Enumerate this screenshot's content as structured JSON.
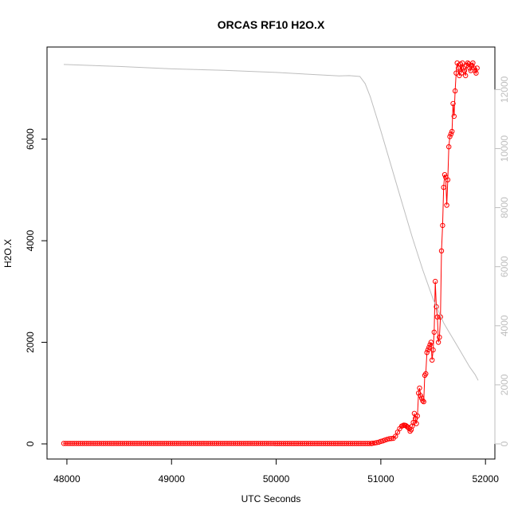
{
  "chart_data": {
    "type": "line",
    "title": "ORCAS RF10 H2O.X",
    "xlabel": "UTC Seconds",
    "ylabel": "H2O.X",
    "y2label": "",
    "xlim": [
      47970,
      51930
    ],
    "ylim": [
      0,
      7500
    ],
    "y2lim": [
      0,
      12900
    ],
    "x_ticks": [
      "48000",
      "49000",
      "50000",
      "51000",
      "52000"
    ],
    "y_ticks": [
      "0",
      "2000",
      "4000",
      "6000"
    ],
    "y2_ticks": [
      "0",
      "2000",
      "4000",
      "6000",
      "8000",
      "10000",
      "12000"
    ],
    "legend": "none",
    "grid": false,
    "series": [
      {
        "axis": "left",
        "style": "line-with-circle-markers",
        "color": "#ff0000",
        "flat_segment": {
          "x_start": 47970,
          "x_end": 50900,
          "step": 20,
          "y_start": 10,
          "y_end": 8
        },
        "x": [
          50920,
          50940,
          50960,
          50980,
          51000,
          51020,
          51040,
          51060,
          51080,
          51100,
          51120,
          51140,
          51160,
          51180,
          51200,
          51210,
          51220,
          51230,
          51240,
          51250,
          51260,
          51270,
          51280,
          51290,
          51300,
          51310,
          51320,
          51330,
          51340,
          51350,
          51360,
          51370,
          51380,
          51390,
          51400,
          51410,
          51420,
          51430,
          51440,
          51450,
          51460,
          51470,
          51480,
          51490,
          51500,
          51510,
          51520,
          51530,
          51540,
          51550,
          51560,
          51570,
          51580,
          51590,
          51600,
          51610,
          51620,
          51630,
          51640,
          51650,
          51660,
          51670,
          51680,
          51690,
          51700,
          51710,
          51720,
          51730,
          51740,
          51750,
          51760,
          51770,
          51780,
          51790,
          51800,
          51810,
          51820,
          51830,
          51840,
          51850,
          51860,
          51870,
          51880,
          51890,
          51900,
          51910,
          51920
        ],
        "y": [
          12,
          18,
          25,
          35,
          50,
          60,
          75,
          90,
          100,
          105,
          110,
          150,
          230,
          300,
          350,
          360,
          370,
          365,
          360,
          340,
          330,
          300,
          250,
          280,
          350,
          420,
          600,
          500,
          400,
          550,
          1000,
          1100,
          950,
          900,
          850,
          830,
          1350,
          1380,
          1800,
          1850,
          1900,
          1950,
          2000,
          1650,
          1850,
          2200,
          3200,
          2700,
          2500,
          2000,
          2100,
          2500,
          3800,
          4300,
          5050,
          5300,
          5250,
          4700,
          5200,
          5850,
          6050,
          6100,
          6150,
          6700,
          6450,
          6950,
          7300,
          7500,
          7400,
          7250,
          7480,
          7300,
          7500,
          7400,
          7350,
          7250,
          7450,
          7500,
          7480,
          7400,
          7350,
          7450,
          7500,
          7400,
          7350,
          7300,
          7400
        ]
      },
      {
        "axis": "right",
        "style": "line",
        "color": "#bebebe",
        "x": [
          47970,
          48500,
          49000,
          49500,
          50000,
          50300,
          50600,
          50700,
          50800,
          50850,
          50900,
          51000,
          51100,
          51200,
          51300,
          51400,
          51500,
          51550,
          51600,
          51650,
          51700,
          51750,
          51800,
          51850,
          51900,
          51930
        ],
        "y": [
          12850,
          12780,
          12700,
          12650,
          12580,
          12520,
          12460,
          12470,
          12440,
          12200,
          11750,
          10600,
          9400,
          8200,
          7000,
          5900,
          4900,
          4500,
          4100,
          3800,
          3500,
          3200,
          2900,
          2600,
          2350,
          2150
        ]
      }
    ]
  }
}
